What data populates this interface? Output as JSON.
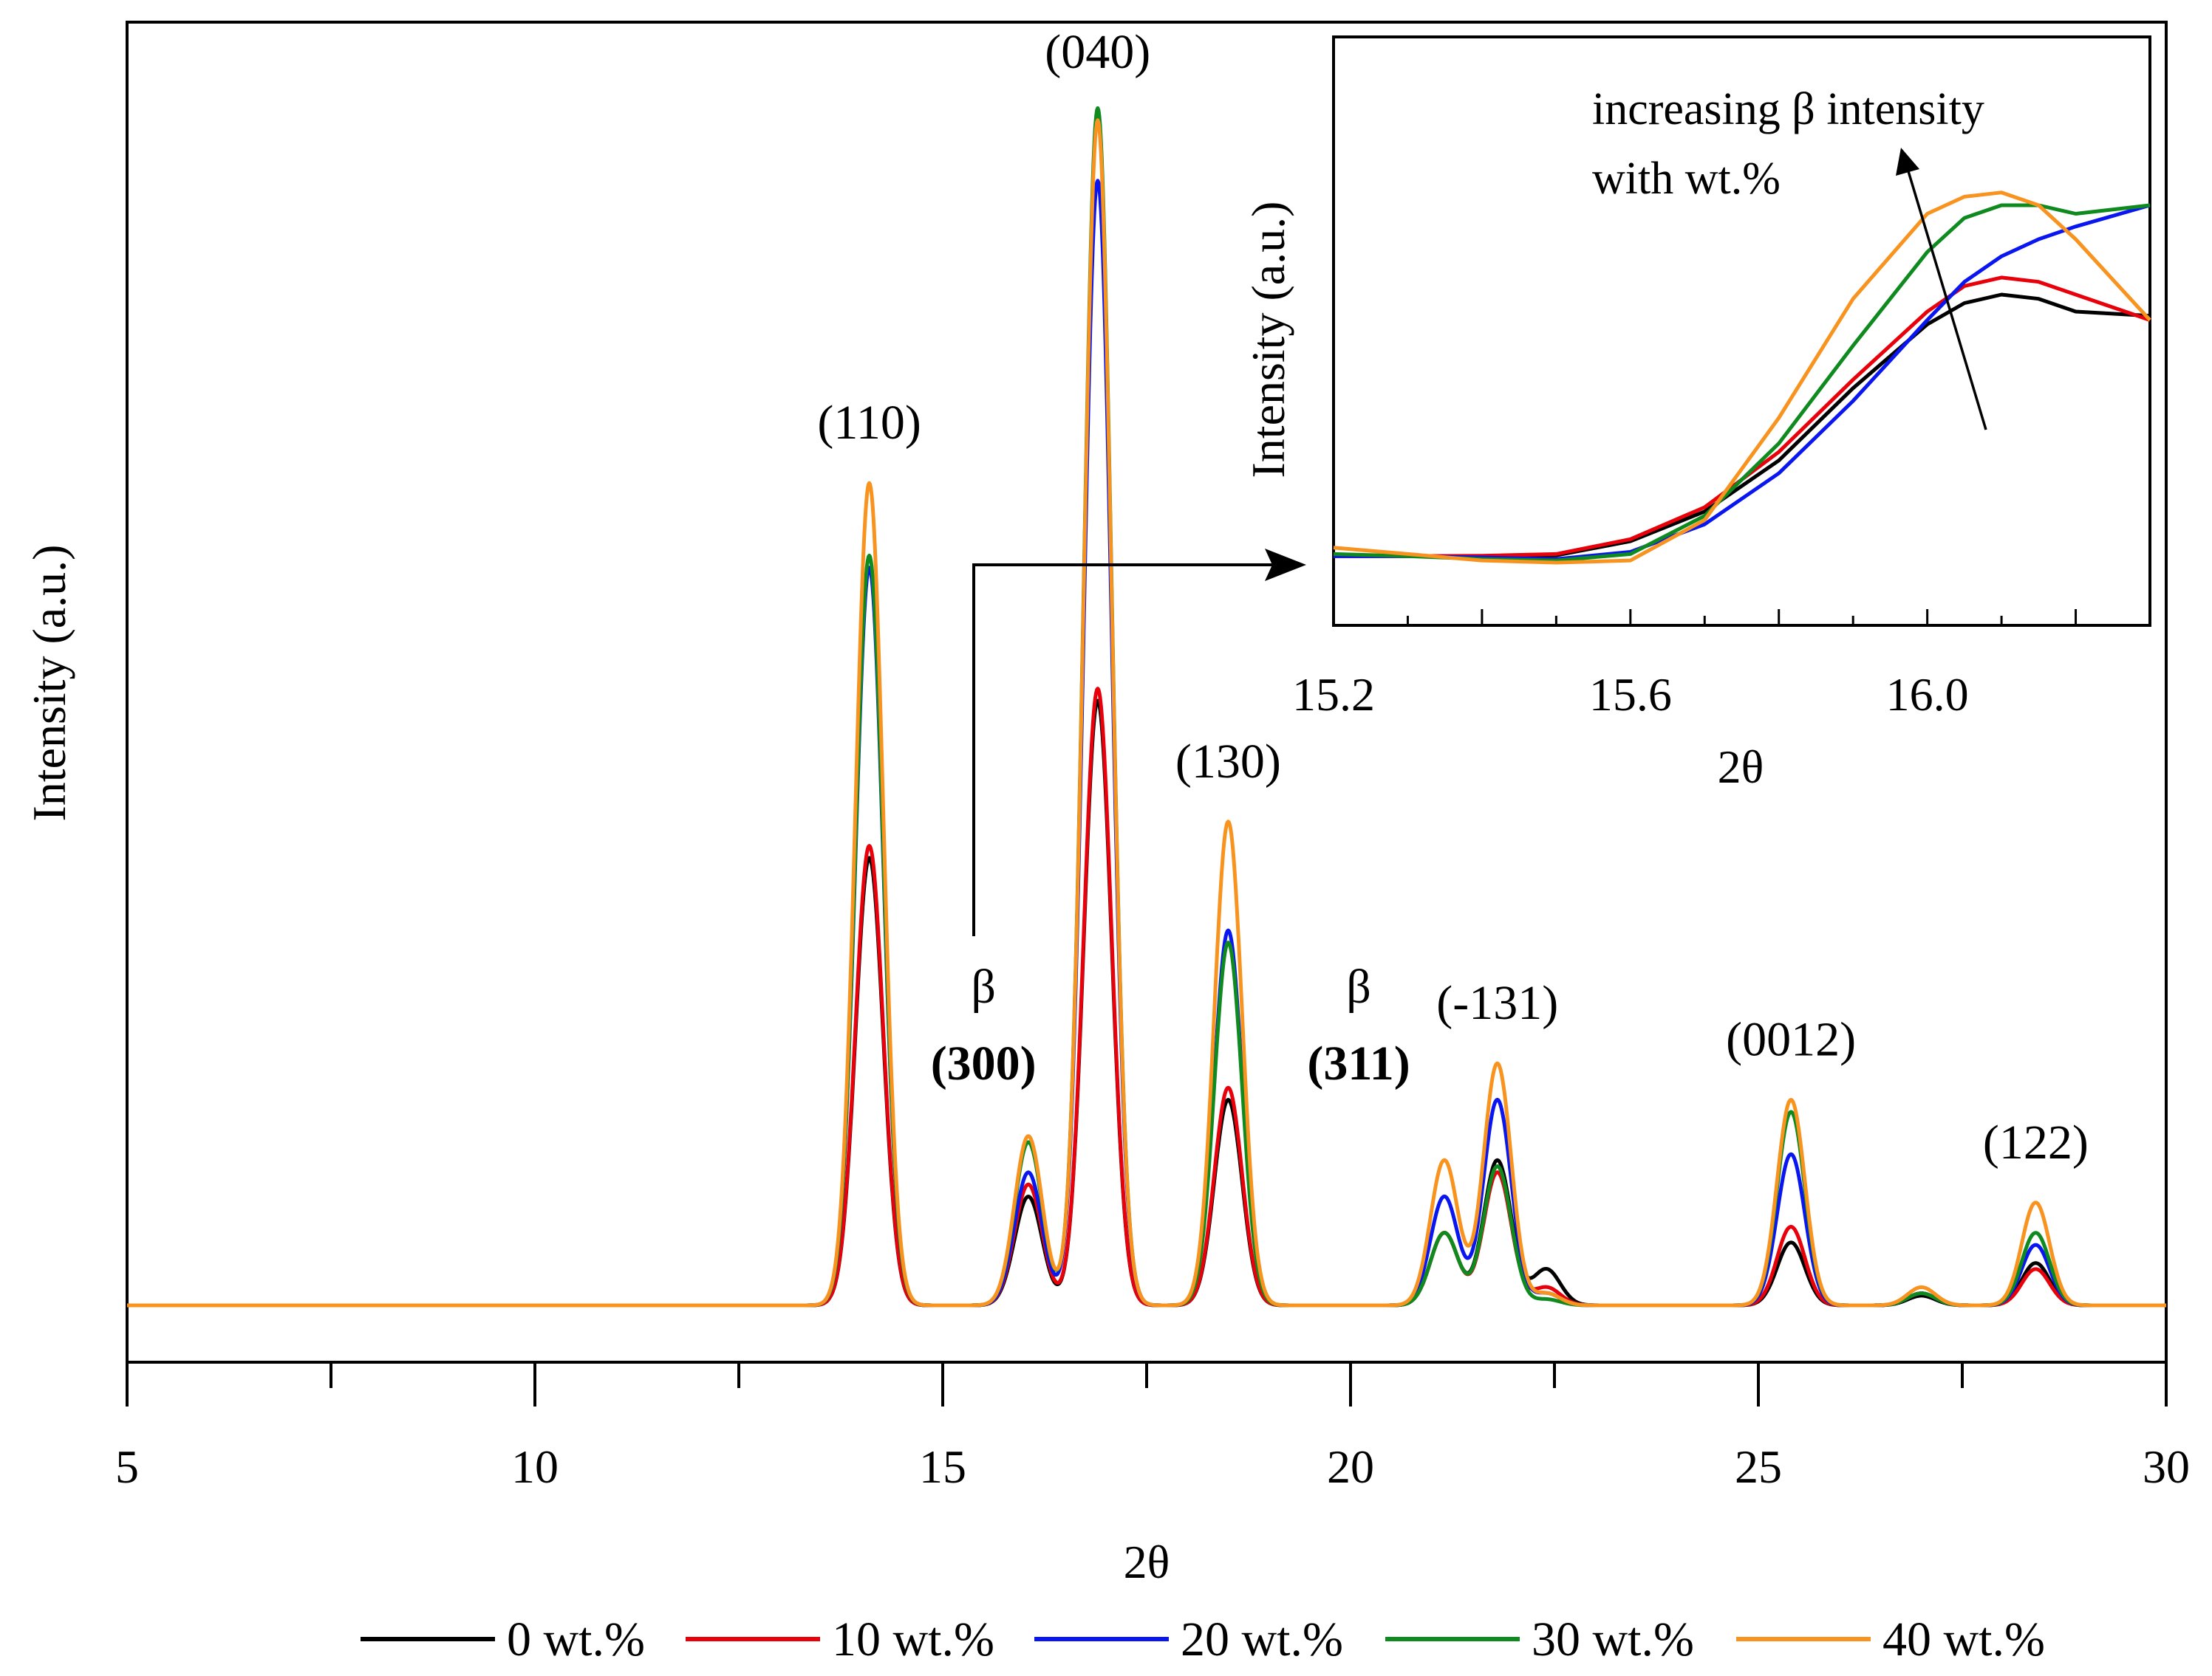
{
  "chart_data": {
    "type": "line",
    "xlabel": "2θ",
    "ylabel": "Intensity (a.u.)",
    "xlim": [
      5,
      30
    ],
    "ylim": [
      0,
      100
    ],
    "xticks": [
      5,
      10,
      15,
      20,
      25,
      30
    ],
    "xtick_labels": [
      "5",
      "10",
      "15",
      "20",
      "25",
      "30"
    ],
    "grid": false,
    "legend_position": "bottom",
    "series": [
      {
        "name": "0 wt.%",
        "color": "#000000",
        "peaks": [
          [
            14.1,
            37
          ],
          [
            16.05,
            9
          ],
          [
            16.9,
            50
          ],
          [
            18.5,
            17
          ],
          [
            21.15,
            6
          ],
          [
            21.8,
            12
          ],
          [
            22.4,
            3
          ],
          [
            25.4,
            5.2
          ],
          [
            27.0,
            0.8
          ],
          [
            28.4,
            3.5
          ]
        ]
      },
      {
        "name": "10 wt.%",
        "color": "#e8000b",
        "peaks": [
          [
            14.1,
            38
          ],
          [
            16.05,
            10
          ],
          [
            16.9,
            51
          ],
          [
            18.5,
            18
          ],
          [
            21.15,
            6
          ],
          [
            21.8,
            11
          ],
          [
            22.4,
            1.5
          ],
          [
            25.4,
            6.5
          ],
          [
            27.0,
            1
          ],
          [
            28.4,
            3
          ]
        ]
      },
      {
        "name": "20 wt.%",
        "color": "#0a16f0",
        "peaks": [
          [
            14.1,
            61
          ],
          [
            16.05,
            11
          ],
          [
            16.9,
            93
          ],
          [
            18.5,
            31
          ],
          [
            21.15,
            9
          ],
          [
            21.8,
            17
          ],
          [
            22.4,
            1
          ],
          [
            25.4,
            12.5
          ],
          [
            27.0,
            1
          ],
          [
            28.4,
            5
          ]
        ]
      },
      {
        "name": "30 wt.%",
        "color": "#0f8a1e",
        "peaks": [
          [
            14.1,
            62
          ],
          [
            16.05,
            13.5
          ],
          [
            16.9,
            99
          ],
          [
            18.5,
            30
          ],
          [
            21.15,
            6
          ],
          [
            21.8,
            11.5
          ],
          [
            22.4,
            0.5
          ],
          [
            25.4,
            16
          ],
          [
            27.0,
            1
          ],
          [
            28.4,
            6
          ]
        ]
      },
      {
        "name": "40 wt.%",
        "color": "#f7931e",
        "peaks": [
          [
            14.1,
            68
          ],
          [
            16.05,
            14
          ],
          [
            16.9,
            98
          ],
          [
            18.5,
            40
          ],
          [
            21.15,
            12
          ],
          [
            21.8,
            20
          ],
          [
            22.4,
            1
          ],
          [
            25.4,
            17
          ],
          [
            27.0,
            1.5
          ],
          [
            28.4,
            8.5
          ]
        ]
      }
    ],
    "peak_labels": [
      {
        "text": "(110)",
        "x": 14.1
      },
      {
        "text": "(040)",
        "x": 16.9
      },
      {
        "text": "(130)",
        "x": 18.5
      },
      {
        "text": "(-131)",
        "x": 21.8
      },
      {
        "text": "(0012)",
        "x": 25.4
      },
      {
        "text": "(122)",
        "x": 28.4
      }
    ],
    "beta_labels": [
      {
        "symbol": "β",
        "text": "(300)",
        "x": 15.5
      },
      {
        "symbol": "β",
        "text": "(311)",
        "x": 20.1
      }
    ],
    "inset": {
      "xlabel": "2θ",
      "ylabel": "Intensity (a.u.)",
      "xlim": [
        15.2,
        16.3
      ],
      "xticks": [
        15.2,
        15.6,
        16.0
      ],
      "xtick_labels": [
        "15.2",
        "15.6",
        "16.0"
      ],
      "annotation": [
        "increasing β intensity",
        "with wt.%"
      ],
      "series": [
        {
          "name": "0 wt.%",
          "color": "#000000",
          "x": [
            15.2,
            15.3,
            15.4,
            15.5,
            15.6,
            15.7,
            15.8,
            15.9,
            16.0,
            16.05,
            16.1,
            16.15,
            16.2,
            16.3
          ],
          "y": [
            0.55,
            0.55,
            0.55,
            0.57,
            0.9,
            1.6,
            2.8,
            4.5,
            6.0,
            6.5,
            6.7,
            6.6,
            6.3,
            6.2
          ]
        },
        {
          "name": "10 wt.%",
          "color": "#e8000b",
          "x": [
            15.2,
            15.3,
            15.4,
            15.5,
            15.6,
            15.7,
            15.8,
            15.9,
            16.0,
            16.05,
            16.1,
            16.15,
            16.2,
            16.3
          ],
          "y": [
            0.55,
            0.55,
            0.56,
            0.6,
            0.95,
            1.7,
            3.0,
            4.7,
            6.3,
            6.9,
            7.1,
            7.0,
            6.7,
            6.1
          ]
        },
        {
          "name": "20 wt.%",
          "color": "#0a16f0",
          "x": [
            15.2,
            15.3,
            15.4,
            15.5,
            15.6,
            15.7,
            15.8,
            15.9,
            16.0,
            16.05,
            16.1,
            16.15,
            16.2,
            16.3
          ],
          "y": [
            0.55,
            0.55,
            0.52,
            0.48,
            0.65,
            1.3,
            2.5,
            4.2,
            6.1,
            7.0,
            7.6,
            8.0,
            8.3,
            8.8
          ]
        },
        {
          "name": "30 wt.%",
          "color": "#0f8a1e",
          "x": [
            15.2,
            15.3,
            15.4,
            15.5,
            15.6,
            15.7,
            15.8,
            15.9,
            16.0,
            16.05,
            16.1,
            16.15,
            16.2,
            16.3
          ],
          "y": [
            0.6,
            0.55,
            0.48,
            0.45,
            0.6,
            1.5,
            3.2,
            5.5,
            7.7,
            8.5,
            8.8,
            8.8,
            8.6,
            8.8
          ]
        },
        {
          "name": "40 wt.%",
          "color": "#f7931e",
          "x": [
            15.2,
            15.3,
            15.4,
            15.5,
            15.6,
            15.7,
            15.8,
            15.9,
            16.0,
            16.05,
            16.1,
            16.15,
            16.2,
            16.3
          ],
          "y": [
            0.75,
            0.6,
            0.45,
            0.4,
            0.45,
            1.4,
            3.8,
            6.6,
            8.6,
            9.0,
            9.1,
            8.8,
            8.0,
            6.1
          ]
        }
      ]
    }
  }
}
